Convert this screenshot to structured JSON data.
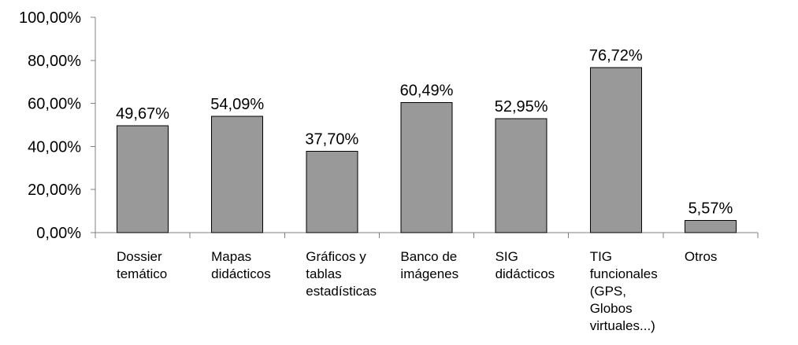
{
  "chart_data": {
    "type": "bar",
    "title": "",
    "xlabel": "",
    "ylabel": "",
    "ylim": [
      0,
      100
    ],
    "y_ticks": [
      "0,00%",
      "20,00%",
      "40,00%",
      "60,00%",
      "80,00%",
      "100,00%"
    ],
    "y_tick_values": [
      0,
      20,
      40,
      60,
      80,
      100
    ],
    "grid": false,
    "legend": "none",
    "bar_color": "#999999",
    "categories": [
      [
        "Dossier",
        "temático"
      ],
      [
        "Mapas",
        "didácticos"
      ],
      [
        "Gráficos y",
        "tablas",
        "estadísticas"
      ],
      [
        "Banco de",
        "imágenes"
      ],
      [
        "SIG",
        "didácticos"
      ],
      [
        "TIG",
        "funcionales",
        "(GPS,",
        "Globos",
        "virtuales...)"
      ],
      [
        "Otros"
      ]
    ],
    "values": [
      49.67,
      54.09,
      37.7,
      60.49,
      52.95,
      76.72,
      5.57
    ],
    "data_labels": [
      "49,67%",
      "54,09%",
      "37,70%",
      "60,49%",
      "52,95%",
      "76,72%",
      "5,57%"
    ]
  }
}
